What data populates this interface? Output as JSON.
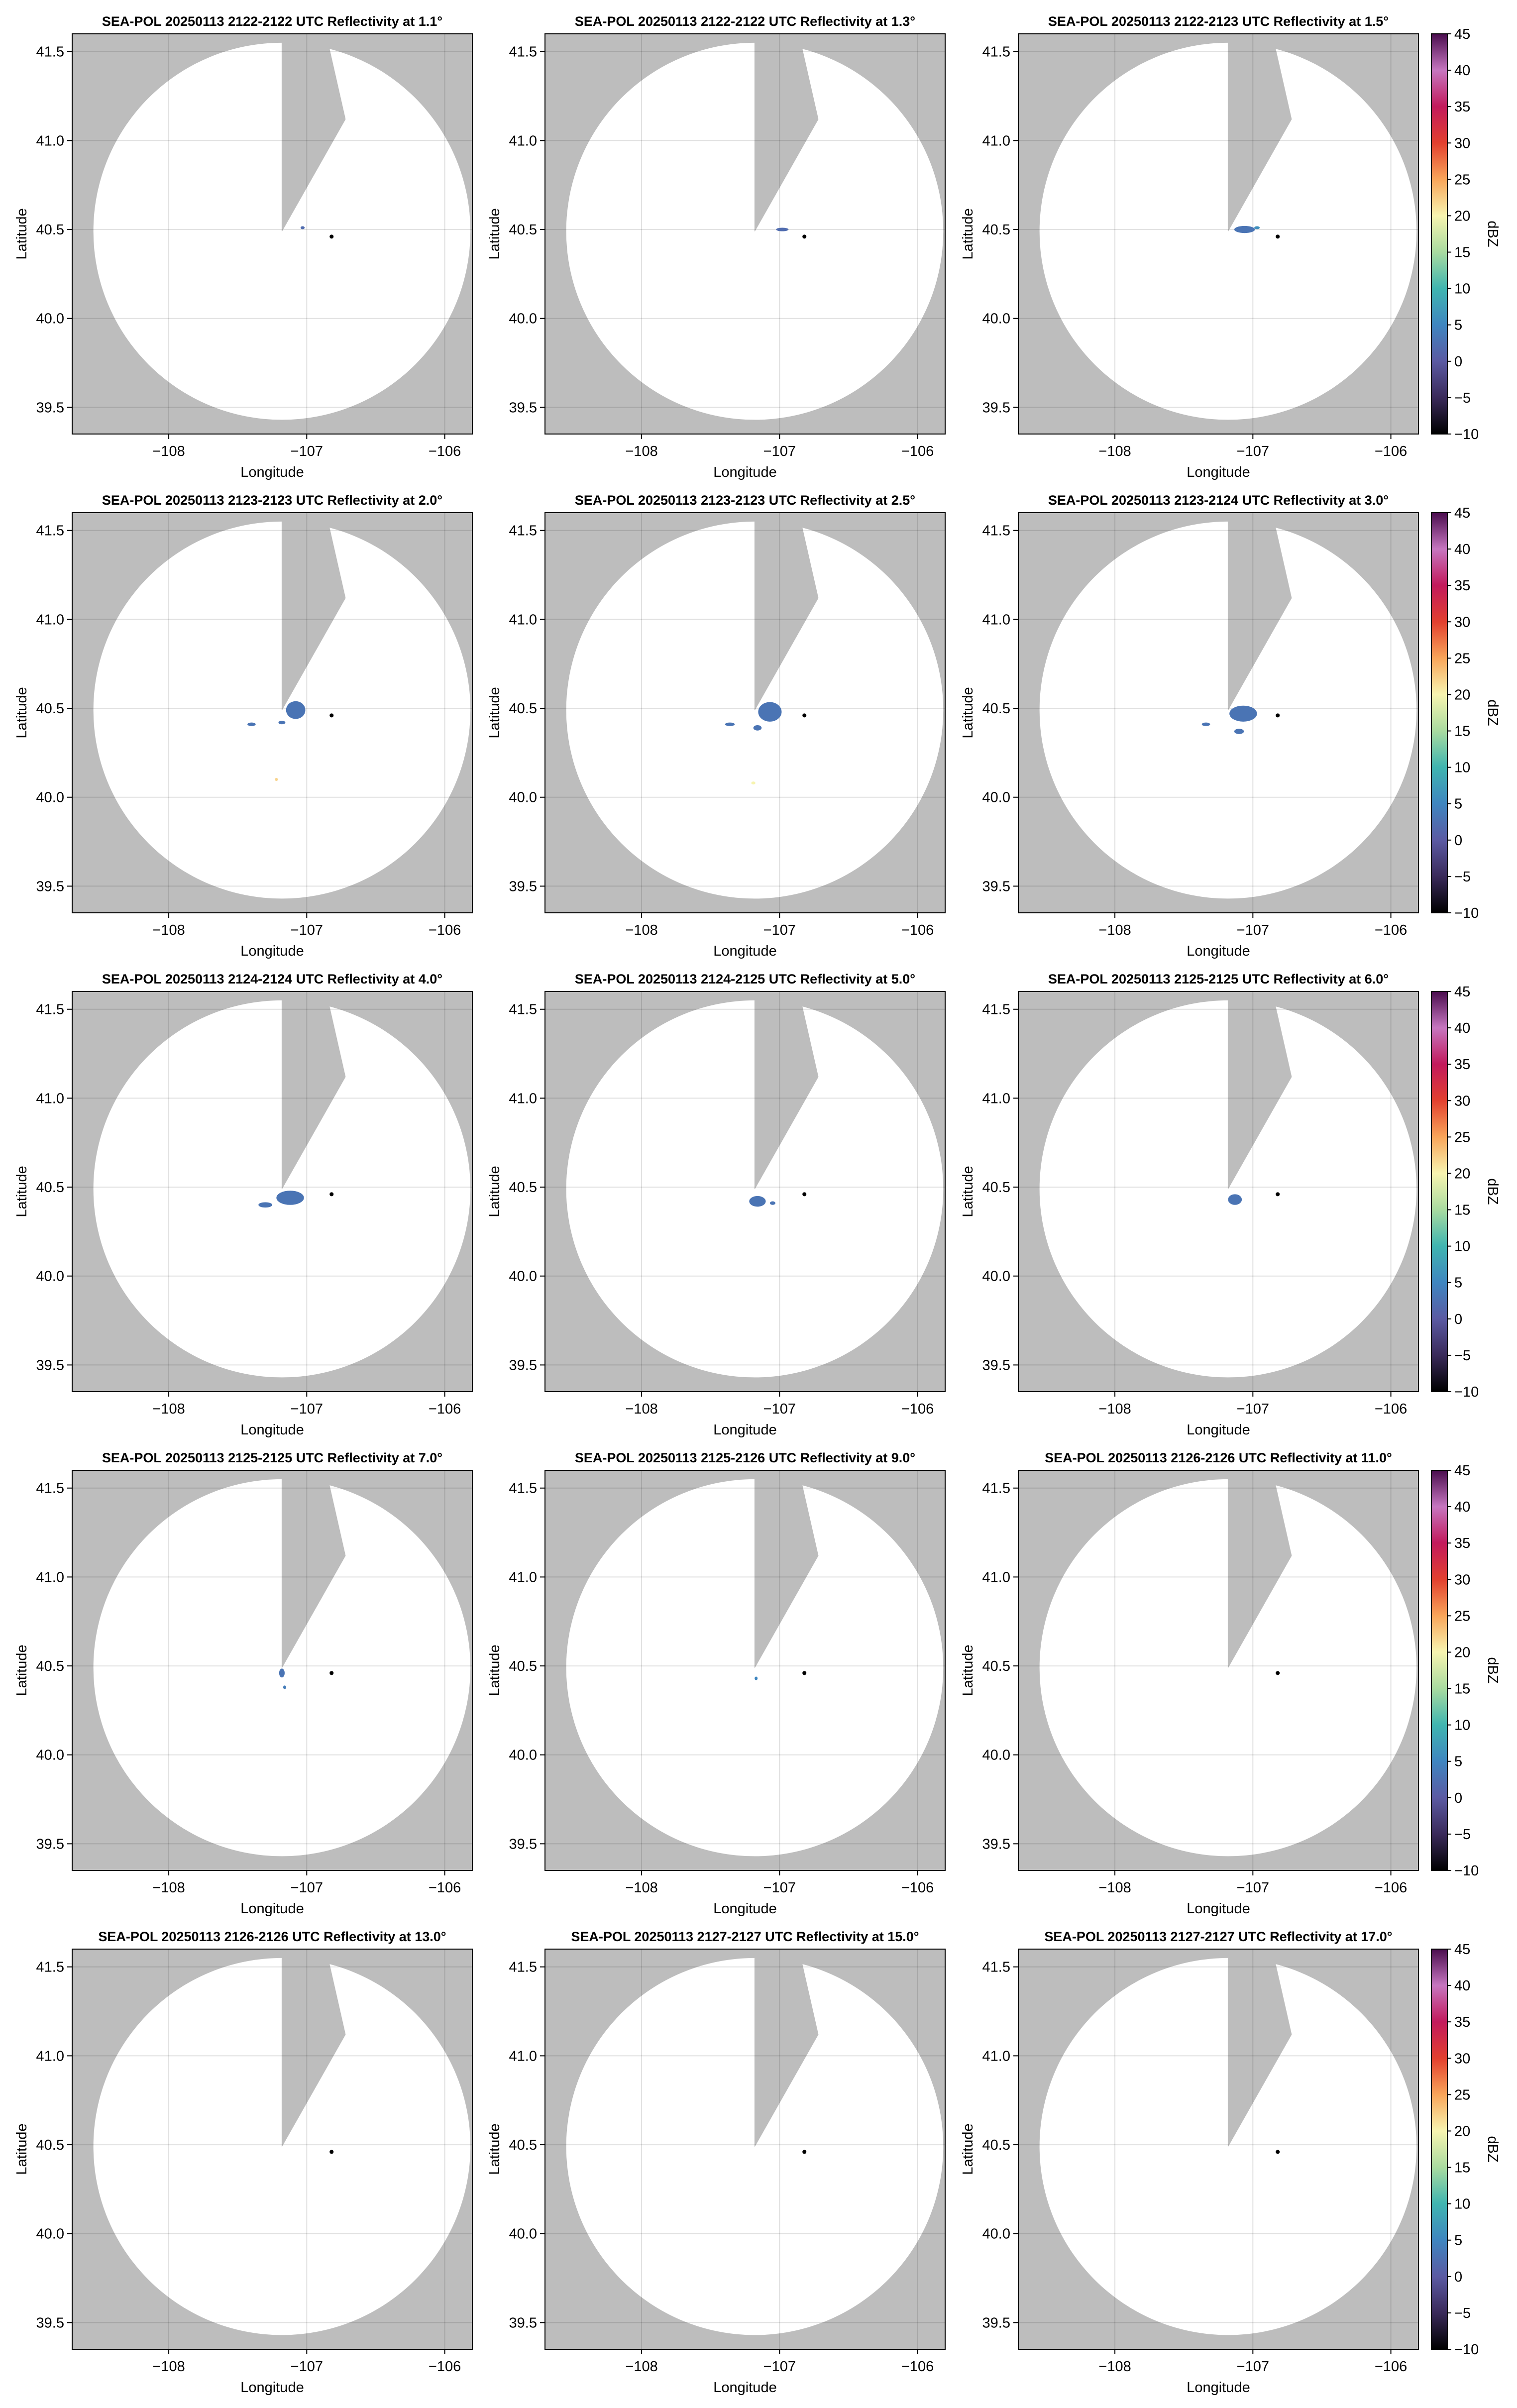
{
  "chart_data": {
    "type": "heatmap",
    "figure_kind": "radar PPI small multiples",
    "layout": {
      "rows": 5,
      "cols": 3
    },
    "shared": {
      "xlabel": "Longitude",
      "ylabel": "Latitude",
      "xlim": [
        -108.7,
        -105.8
      ],
      "ylim": [
        39.35,
        41.6
      ],
      "xticks": [
        -108,
        -107,
        -106
      ],
      "xtick_labels": [
        "−108",
        "−107",
        "−106"
      ],
      "yticks": [
        39.5,
        40.0,
        40.5,
        41.0,
        41.5
      ],
      "ytick_labels": [
        "39.5",
        "40.0",
        "40.5",
        "41.0",
        "41.5"
      ],
      "grid": true,
      "background_color": "#bdbdbd",
      "radar_site": {
        "lon": -107.18,
        "lat": 40.49
      },
      "coverage_radius_deg_lat": 1.06,
      "blocked_sector": {
        "vertices": [
          [
            -107.18,
            40.49
          ],
          [
            -106.84,
            41.53
          ],
          [
            -107.18,
            41.55
          ],
          [
            -106.72,
            41.12
          ]
        ]
      },
      "marker": {
        "lon": -106.82,
        "lat": 40.46
      }
    },
    "colorbar": {
      "label": "dBZ",
      "range": [
        -10,
        45
      ],
      "ticks": [
        -10,
        -5,
        0,
        5,
        10,
        15,
        20,
        25,
        30,
        35,
        40,
        45
      ],
      "tick_labels": [
        "−10",
        "−5",
        "0",
        "5",
        "10",
        "15",
        "20",
        "25",
        "30",
        "35",
        "40",
        "45"
      ],
      "stops": [
        {
          "v": -10,
          "c": "#000000"
        },
        {
          "v": -5,
          "c": "#3a2a5a"
        },
        {
          "v": 0,
          "c": "#5b5aa3"
        },
        {
          "v": 5,
          "c": "#3f86c0"
        },
        {
          "v": 10,
          "c": "#40b5b0"
        },
        {
          "v": 15,
          "c": "#a9dba0"
        },
        {
          "v": 20,
          "c": "#f7f4b0"
        },
        {
          "v": 25,
          "c": "#f9a55a"
        },
        {
          "v": 30,
          "c": "#e2402f"
        },
        {
          "v": 35,
          "c": "#c21a5c"
        },
        {
          "v": 40,
          "c": "#c676c0"
        },
        {
          "v": 45,
          "c": "#4a0d4e"
        }
      ]
    },
    "panels": [
      {
        "title": "SEA-POL 20250113 2122-2122 UTC Reflectivity at 1.1°",
        "echoes": [
          {
            "lon": -107.03,
            "lat": 40.51,
            "w": 0.03,
            "h": 0.01,
            "dbz": 2
          }
        ]
      },
      {
        "title": "SEA-POL 20250113 2122-2122 UTC Reflectivity at 1.3°",
        "echoes": [
          {
            "lon": -106.98,
            "lat": 40.5,
            "w": 0.09,
            "h": 0.02,
            "dbz": 2
          }
        ]
      },
      {
        "title": "SEA-POL 20250113 2122-2123 UTC Reflectivity at 1.5°",
        "echoes": [
          {
            "lon": -107.06,
            "lat": 40.5,
            "w": 0.15,
            "h": 0.04,
            "dbz": 3
          },
          {
            "lon": -106.97,
            "lat": 40.51,
            "w": 0.04,
            "h": 0.01,
            "dbz": 6
          }
        ]
      },
      {
        "title": "SEA-POL 20250113 2123-2123 UTC Reflectivity at 2.0°",
        "echoes": [
          {
            "lon": -107.08,
            "lat": 40.49,
            "w": 0.14,
            "h": 0.1,
            "dbz": 3
          },
          {
            "lon": -107.4,
            "lat": 40.41,
            "w": 0.06,
            "h": 0.02,
            "dbz": 3
          },
          {
            "lon": -107.18,
            "lat": 40.42,
            "w": 0.05,
            "h": 0.02,
            "dbz": 3
          },
          {
            "lon": -107.22,
            "lat": 40.1,
            "w": 0.02,
            "h": 0.01,
            "dbz": 22
          }
        ]
      },
      {
        "title": "SEA-POL 20250113 2123-2123 UTC Reflectivity at 2.5°",
        "echoes": [
          {
            "lon": -107.07,
            "lat": 40.48,
            "w": 0.17,
            "h": 0.11,
            "dbz": 3
          },
          {
            "lon": -107.36,
            "lat": 40.41,
            "w": 0.07,
            "h": 0.02,
            "dbz": 3
          },
          {
            "lon": -107.16,
            "lat": 40.39,
            "w": 0.06,
            "h": 0.03,
            "dbz": 3
          },
          {
            "lon": -107.19,
            "lat": 40.08,
            "w": 0.03,
            "h": 0.01,
            "dbz": 20
          }
        ]
      },
      {
        "title": "SEA-POL 20250113 2123-2124 UTC Reflectivity at 3.0°",
        "echoes": [
          {
            "lon": -107.07,
            "lat": 40.47,
            "w": 0.2,
            "h": 0.09,
            "dbz": 3
          },
          {
            "lon": -107.34,
            "lat": 40.41,
            "w": 0.06,
            "h": 0.02,
            "dbz": 3
          },
          {
            "lon": -107.1,
            "lat": 40.37,
            "w": 0.07,
            "h": 0.03,
            "dbz": 3
          }
        ]
      },
      {
        "title": "SEA-POL 20250113 2124-2124 UTC Reflectivity at 4.0°",
        "echoes": [
          {
            "lon": -107.12,
            "lat": 40.44,
            "w": 0.2,
            "h": 0.08,
            "dbz": 3
          },
          {
            "lon": -107.3,
            "lat": 40.4,
            "w": 0.1,
            "h": 0.03,
            "dbz": 3
          }
        ]
      },
      {
        "title": "SEA-POL 20250113 2124-2125 UTC Reflectivity at 5.0°",
        "echoes": [
          {
            "lon": -107.16,
            "lat": 40.42,
            "w": 0.12,
            "h": 0.06,
            "dbz": 3
          },
          {
            "lon": -107.05,
            "lat": 40.41,
            "w": 0.04,
            "h": 0.02,
            "dbz": 3
          }
        ]
      },
      {
        "title": "SEA-POL 20250113 2125-2125 UTC Reflectivity at 6.0°",
        "echoes": [
          {
            "lon": -107.13,
            "lat": 40.43,
            "w": 0.1,
            "h": 0.06,
            "dbz": 3
          }
        ]
      },
      {
        "title": "SEA-POL 20250113 2125-2125 UTC Reflectivity at 7.0°",
        "echoes": [
          {
            "lon": -107.18,
            "lat": 40.46,
            "w": 0.04,
            "h": 0.05,
            "dbz": 3
          },
          {
            "lon": -107.16,
            "lat": 40.38,
            "w": 0.02,
            "h": 0.02,
            "dbz": 4
          }
        ]
      },
      {
        "title": "SEA-POL 20250113 2125-2126 UTC Reflectivity at 9.0°",
        "echoes": [
          {
            "lon": -107.17,
            "lat": 40.43,
            "w": 0.02,
            "h": 0.02,
            "dbz": 5
          }
        ]
      },
      {
        "title": "SEA-POL 20250113 2126-2126 UTC Reflectivity at 11.0°",
        "echoes": []
      },
      {
        "title": "SEA-POL 20250113 2126-2126 UTC Reflectivity at 13.0°",
        "echoes": []
      },
      {
        "title": "SEA-POL 20250113 2127-2127 UTC Reflectivity at 15.0°",
        "echoes": []
      },
      {
        "title": "SEA-POL 20250113 2127-2127 UTC Reflectivity at 17.0°",
        "echoes": []
      }
    ]
  }
}
